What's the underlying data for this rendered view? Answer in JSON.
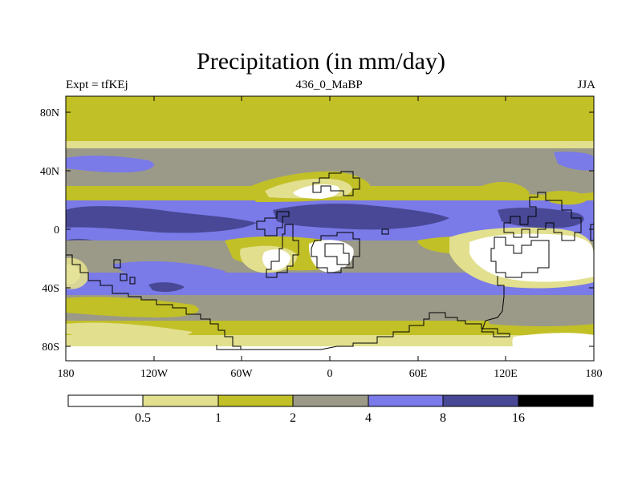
{
  "title": "Precipitation (in mm/day)",
  "left_label": "Expt = tfKEj",
  "center_label": "436_0_MaBP",
  "right_label": "JJA",
  "x_ticks": [
    "180",
    "120W",
    "60W",
    "0",
    "60E",
    "120E",
    "180"
  ],
  "y_ticks": [
    "80N",
    "40N",
    "0",
    "40S",
    "80S"
  ],
  "colorbar": {
    "labels": [
      "0.5",
      "1",
      "2",
      "4",
      "8",
      "16"
    ],
    "colors": [
      "#ffffff",
      "#e2df8e",
      "#c2c027",
      "#9b9a88",
      "#7a7ae8",
      "#484896",
      "#000000"
    ]
  },
  "palette": {
    "white": "#ffffff",
    "light_yellow": "#e2df8e",
    "olive": "#c2c027",
    "gray": "#9b9a88",
    "blue": "#7a7ae8",
    "dark_blue": "#484896",
    "black": "#000000"
  }
}
